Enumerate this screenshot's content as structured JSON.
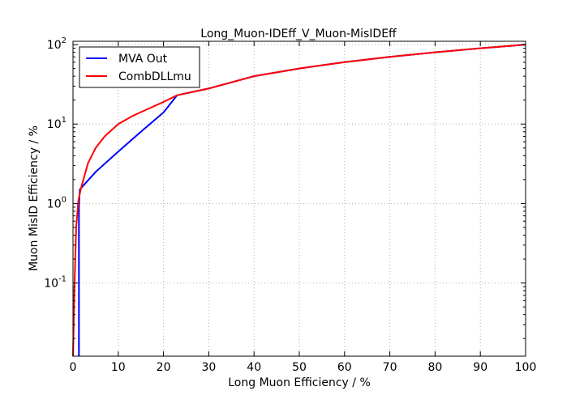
{
  "chart_data": {
    "type": "line",
    "title": "Long_Muon-IDEff_V_Muon-MisIDEff",
    "xlabel": "Long Muon Efficiency / %",
    "ylabel": "Muon MisID Efficiency / %",
    "xlim": [
      0,
      100
    ],
    "ylim": [
      0.012,
      110
    ],
    "yscale": "log",
    "grid": true,
    "legend_position": "top-left",
    "x_ticks": [
      0,
      10,
      20,
      30,
      40,
      50,
      60,
      70,
      80,
      90,
      100
    ],
    "x_tick_labels": [
      "0",
      "10",
      "20",
      "30",
      "40",
      "50",
      "60",
      "70",
      "80",
      "90",
      "100"
    ],
    "y_ticks": [
      0.1,
      1,
      10,
      100
    ],
    "y_tick_labels": [
      {
        "base": "10",
        "exp": "-1"
      },
      {
        "base": "10",
        "exp": "0"
      },
      {
        "base": "10",
        "exp": "1"
      },
      {
        "base": "10",
        "exp": "2"
      }
    ],
    "series": [
      {
        "name": "MVA Out",
        "color": "#0000ff",
        "x": [
          1.3,
          1.3,
          1.5,
          5,
          10,
          15,
          20,
          23,
          30,
          40,
          50,
          60,
          70,
          80,
          90,
          100
        ],
        "y": [
          0.012,
          0.9,
          1.5,
          2.5,
          4.5,
          8,
          14,
          23,
          28,
          40,
          50,
          60,
          70,
          80,
          90,
          100
        ]
      },
      {
        "name": "CombDLLmu",
        "color": "#ff0000",
        "x": [
          0,
          0.3,
          0.7,
          1.2,
          1.7,
          2.3,
          3.3,
          5,
          7,
          10,
          13,
          16,
          20,
          23,
          30,
          40,
          50,
          60,
          70,
          80,
          90,
          100
        ],
        "y": [
          0.012,
          0.08,
          0.5,
          1.1,
          1.5,
          2.0,
          3.2,
          5,
          7,
          10,
          12.5,
          15,
          19,
          23,
          28,
          40,
          50,
          60,
          70,
          80,
          90,
          100
        ]
      }
    ]
  }
}
